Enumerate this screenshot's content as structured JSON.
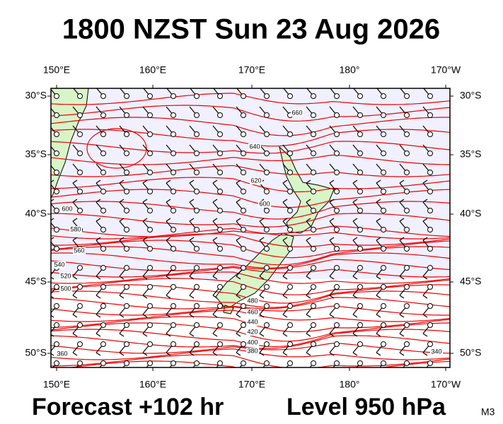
{
  "header": {
    "title": "1800 NZST Sun 23 Aug 2026"
  },
  "map": {
    "lon_labels": [
      "150°E",
      "160°E",
      "170°E",
      "180°",
      "170°W"
    ],
    "lat_labels": [
      "30°S",
      "35°S",
      "40°S",
      "45°S",
      "50°S"
    ],
    "contour_labels": [
      "660",
      "640",
      "620",
      "600",
      "600",
      "580",
      "560",
      "540",
      "520",
      "500",
      "480",
      "460",
      "440",
      "420",
      "400",
      "380",
      "360",
      "340"
    ]
  },
  "footer": {
    "forecast": "Forecast +102 hr",
    "level": "Level 950 hPa",
    "model": "M3"
  }
}
